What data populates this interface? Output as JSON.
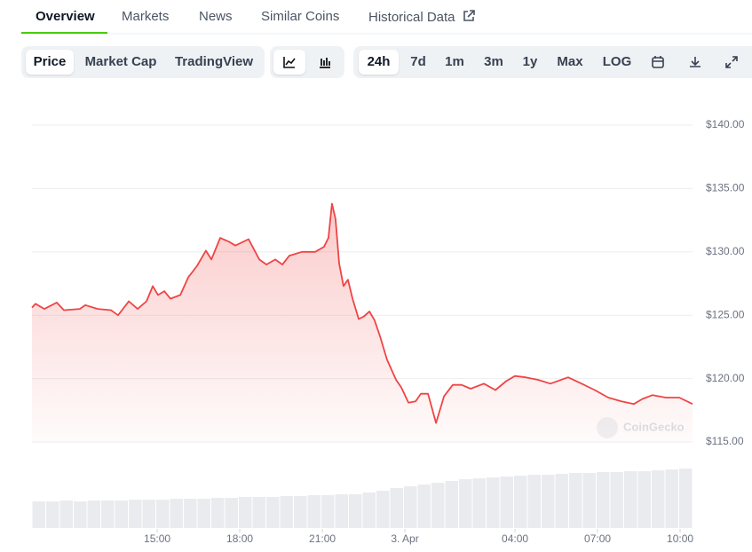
{
  "tabs": [
    "Overview",
    "Markets",
    "News",
    "Similar Coins",
    "Historical Data"
  ],
  "active_tab": 0,
  "view_buttons": [
    "Price",
    "Market Cap",
    "TradingView"
  ],
  "range_buttons": [
    "24h",
    "7d",
    "1m",
    "3m",
    "1y",
    "Max",
    "LOG"
  ],
  "watermark": "CoinGecko",
  "chart_data": {
    "type": "line",
    "color": "#ef4444",
    "x": [
      10.45,
      10.58,
      10.9,
      11.35,
      11.61,
      12.19,
      12.39,
      12.84,
      13.32,
      13.58,
      13.97,
      14.29,
      14.61,
      14.84,
      15.03,
      15.26,
      15.48,
      15.84,
      16.13,
      16.45,
      16.77,
      16.97,
      17.29,
      17.61,
      17.84,
      18.32,
      18.71,
      18.97,
      19.29,
      19.55,
      19.8,
      20.26,
      20.74,
      21.06,
      21.22,
      21.35,
      21.48,
      21.61,
      21.77,
      21.93,
      22.1,
      22.32,
      22.51,
      22.71,
      22.9,
      23.1,
      23.35,
      23.68,
      23.87,
      24.13,
      24.39,
      24.58,
      24.84,
      25.13,
      25.42,
      25.74,
      26.06,
      26.39,
      26.87,
      27.29,
      27.68,
      28,
      28.39,
      28.84,
      29.29,
      29.93,
      30.42,
      30.9,
      31.39,
      31.87,
      32.32,
      32.64,
      33,
      33.48,
      33.97,
      34.45
    ],
    "values": [
      125.6,
      125.9,
      125.5,
      126.0,
      125.4,
      125.5,
      125.8,
      125.5,
      125.4,
      125.0,
      126.1,
      125.5,
      126.1,
      127.3,
      126.6,
      126.9,
      126.3,
      126.6,
      128.0,
      128.9,
      130.1,
      129.4,
      131.1,
      130.8,
      130.5,
      131.0,
      129.4,
      129.0,
      129.4,
      129.0,
      129.7,
      130.0,
      130.0,
      130.4,
      131.1,
      133.8,
      132.6,
      129.1,
      127.3,
      127.8,
      126.3,
      124.7,
      124.9,
      125.3,
      124.6,
      123.3,
      121.5,
      119.9,
      119.3,
      118.1,
      118.2,
      118.8,
      118.8,
      116.5,
      118.6,
      119.5,
      119.5,
      119.2,
      119.6,
      119.1,
      119.8,
      120.2,
      120.1,
      119.9,
      119.6,
      120.1,
      119.6,
      119.1,
      118.5,
      118.2,
      118.0,
      118.4,
      118.7,
      118.5,
      118.5,
      118.0
    ],
    "xlim": [
      10.45,
      34.45
    ],
    "xticks": [
      {
        "value": 15,
        "label": "15:00"
      },
      {
        "value": 18,
        "label": "18:00"
      },
      {
        "value": 21,
        "label": "21:00"
      },
      {
        "value": 24,
        "label": "3. Apr"
      },
      {
        "value": 28,
        "label": "04:00"
      },
      {
        "value": 31,
        "label": "07:00"
      },
      {
        "value": 34,
        "label": "10:00"
      }
    ],
    "ylim": [
      115,
      140
    ],
    "yticks": [
      {
        "value": 140,
        "label": "$140.00"
      },
      {
        "value": 135,
        "label": "$135.00"
      },
      {
        "value": 130,
        "label": "$130.00"
      },
      {
        "value": 125,
        "label": "$125.00"
      },
      {
        "value": 120,
        "label": "$120.00"
      },
      {
        "value": 115,
        "label": "$115.00"
      }
    ],
    "grid": true,
    "volume": {
      "color": "#e9ebef",
      "values": [
        30,
        30,
        31,
        30,
        31,
        31,
        31,
        32,
        32,
        32,
        33,
        33,
        33,
        34,
        34,
        35,
        35,
        35,
        36,
        36,
        37,
        37,
        38,
        38,
        40,
        42,
        45,
        47,
        49,
        51,
        53,
        55,
        56,
        57,
        58,
        59,
        60,
        60,
        61,
        62,
        62,
        63,
        63,
        64,
        64,
        65,
        66,
        67
      ]
    }
  }
}
